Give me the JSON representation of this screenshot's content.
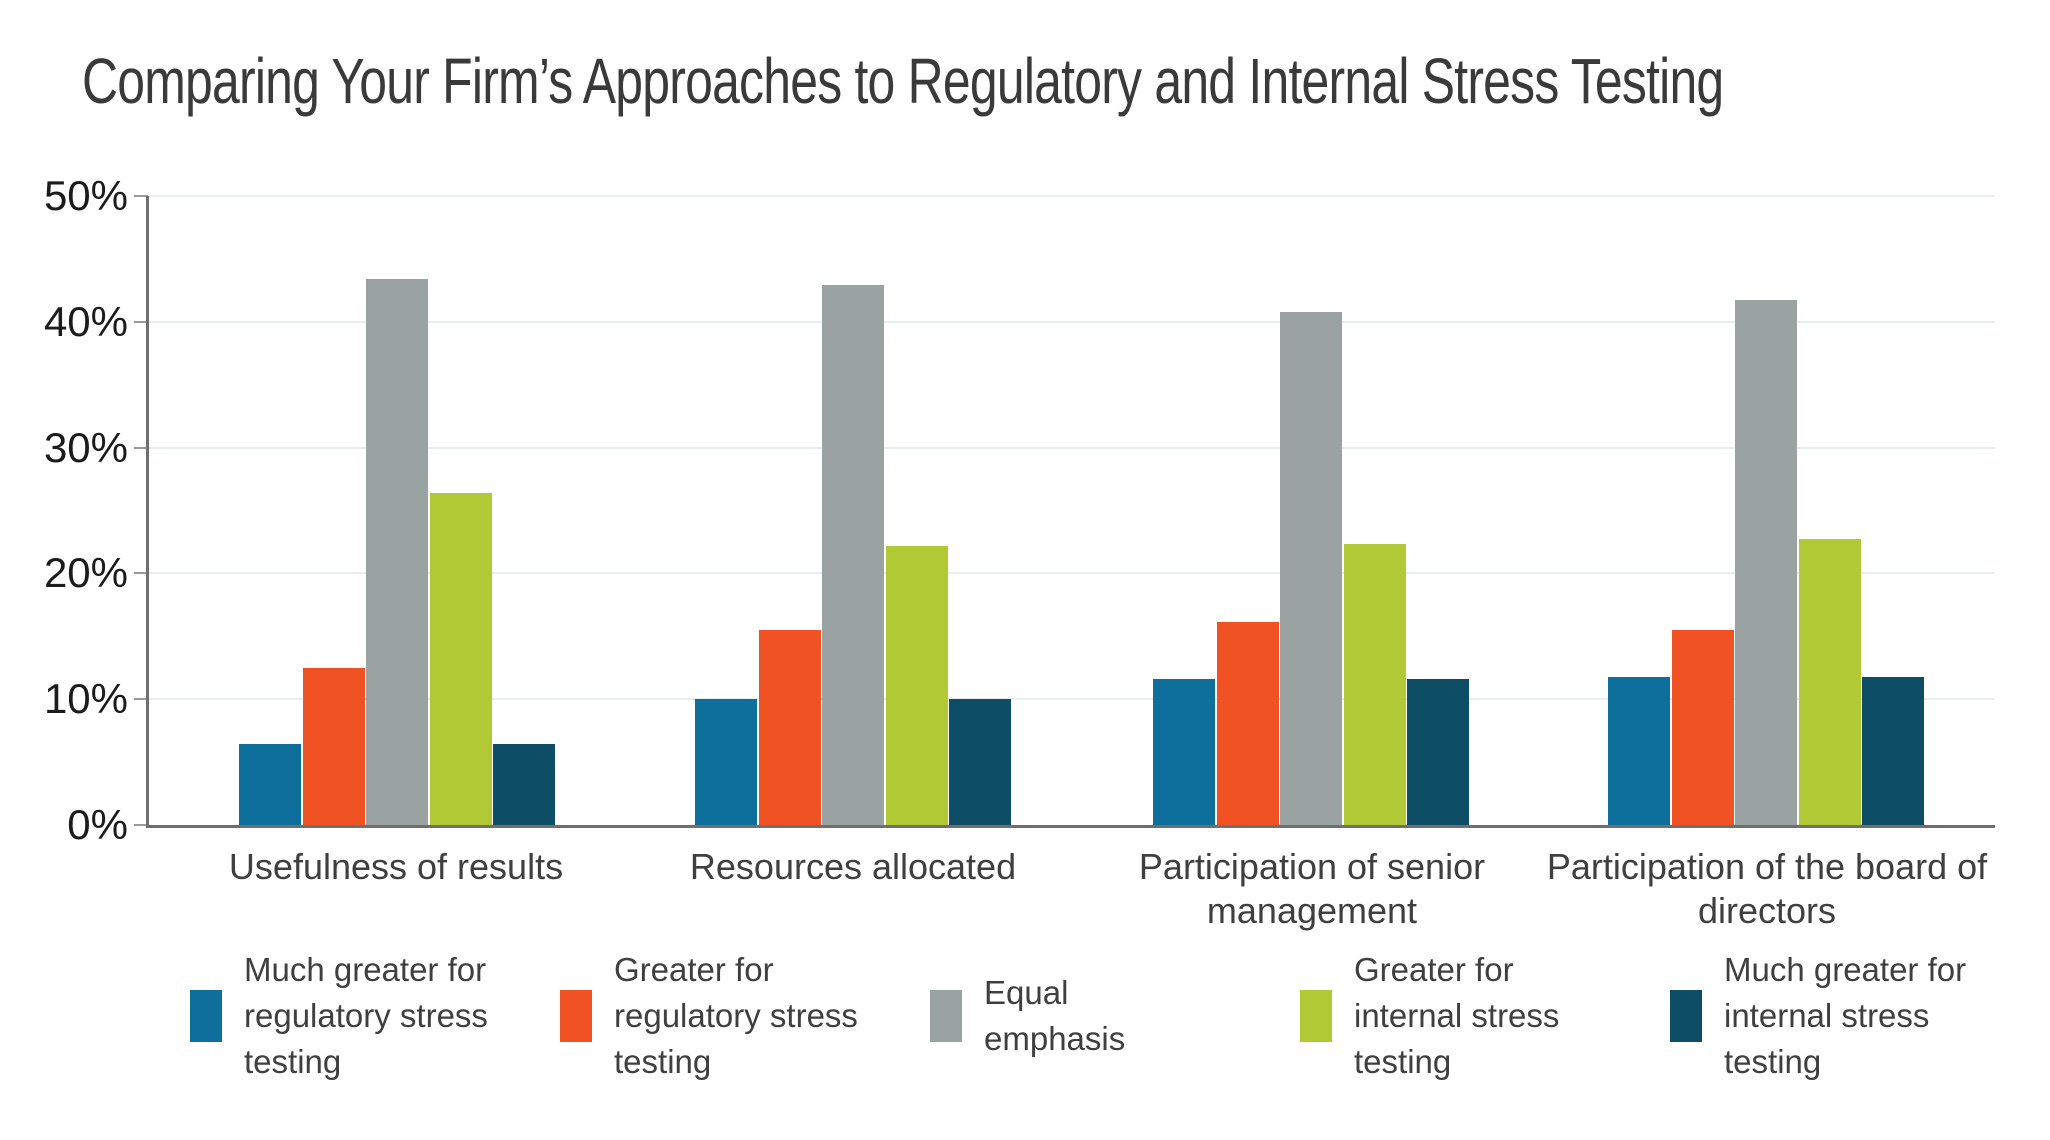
{
  "title": "Comparing Your Firm’s Approaches to Regulatory and Internal Stress Testing",
  "colors": {
    "much_greater_regulatory": "#0e6f9d",
    "greater_regulatory": "#f05223",
    "equal_emphasis": "#9aa3a2",
    "greater_internal": "#b0c935",
    "much_greater_internal": "#0d4d66",
    "gridline": "#e8eded",
    "axis": "#6f6f6f",
    "tick": "#9a9a9a",
    "title_text": "#3a3a3a",
    "axis_label_text": "#1b1b1b",
    "category_text": "#3f3f3f"
  },
  "chart_data": {
    "type": "bar",
    "title": "Comparing Your Firm’s Approaches to Regulatory and Internal Stress Testing",
    "categories": [
      "Usefulness of results",
      "Resources allocated",
      "Participation of senior management",
      "Participation of the board of directors"
    ],
    "series": [
      {
        "name": "Much greater for regulatory stress testing",
        "color": "#0e6f9d",
        "values": [
          6.4,
          10.0,
          11.6,
          11.8
        ]
      },
      {
        "name": "Greater for regulatory stress testing",
        "color": "#f05223",
        "values": [
          12.5,
          15.5,
          16.1,
          15.5
        ]
      },
      {
        "name": "Equal emphasis",
        "color": "#9aa3a2",
        "values": [
          43.4,
          42.9,
          40.8,
          41.7
        ]
      },
      {
        "name": "Greater for internal stress testing",
        "color": "#b0c935",
        "values": [
          26.4,
          22.2,
          22.3,
          22.7
        ]
      },
      {
        "name": "Much greater for internal stress testing",
        "color": "#0d4d66",
        "values": [
          6.4,
          10.0,
          11.6,
          11.8
        ]
      }
    ],
    "xlabel": "",
    "ylabel": "",
    "ylim": [
      0,
      50
    ],
    "yticks": [
      "0%",
      "10%",
      "20%",
      "30%",
      "40%",
      "50%"
    ],
    "grid": true,
    "legend_position": "bottom"
  }
}
